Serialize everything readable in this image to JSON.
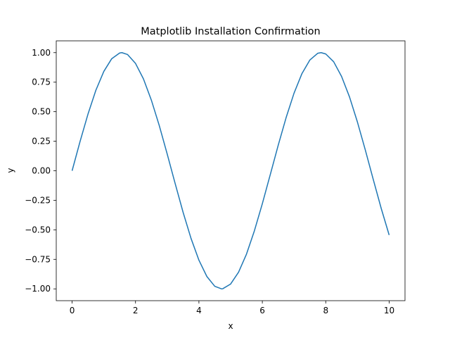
{
  "chart_data": {
    "type": "line",
    "title": "Matplotlib Installation Confirmation",
    "xlabel": "x",
    "ylabel": "y",
    "xlim": [
      -0.5,
      10.5
    ],
    "ylim": [
      -1.1,
      1.1
    ],
    "xticks": [
      0,
      2,
      4,
      6,
      8,
      10
    ],
    "xtick_labels": [
      "0",
      "2",
      "4",
      "6",
      "8",
      "10"
    ],
    "yticks": [
      -1.0,
      -0.75,
      -0.5,
      -0.25,
      0.0,
      0.25,
      0.5,
      0.75,
      1.0
    ],
    "ytick_labels": [
      "−1.00",
      "−0.75",
      "−0.50",
      "−0.25",
      "0.00",
      "0.25",
      "0.50",
      "0.75",
      "1.00"
    ],
    "grid": false,
    "series": [
      {
        "color": "#1f77b4",
        "x": [
          0,
          0.25,
          0.5,
          0.75,
          1,
          1.25,
          1.5,
          1.5708,
          1.75,
          2,
          2.25,
          2.5,
          2.75,
          3,
          3.25,
          3.5,
          3.75,
          4,
          4.25,
          4.5,
          4.7124,
          4.75,
          5,
          5.25,
          5.5,
          5.75,
          6,
          6.25,
          6.5,
          6.75,
          7,
          7.25,
          7.5,
          7.75,
          7.854,
          8,
          8.25,
          8.5,
          8.75,
          9,
          9.25,
          9.5,
          9.75,
          10
        ],
        "y": [
          0,
          0.247,
          0.479,
          0.682,
          0.841,
          0.949,
          0.997,
          1.0,
          0.984,
          0.909,
          0.778,
          0.598,
          0.382,
          0.141,
          -0.108,
          -0.351,
          -0.572,
          -0.757,
          -0.895,
          -0.978,
          -1.0,
          -0.999,
          -0.959,
          -0.859,
          -0.706,
          -0.508,
          -0.279,
          -0.033,
          0.215,
          0.45,
          0.657,
          0.823,
          0.938,
          0.995,
          1.0,
          0.989,
          0.923,
          0.798,
          0.625,
          0.412,
          0.174,
          -0.075,
          -0.319,
          -0.544
        ]
      }
    ]
  }
}
